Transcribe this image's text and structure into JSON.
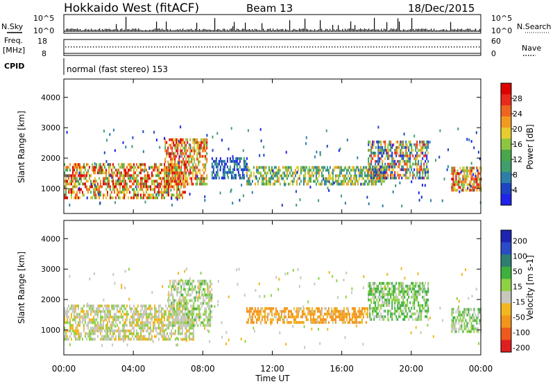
{
  "header": {
    "station": "Hokkaido West (fitACF)",
    "beam": "Beam 13",
    "date": "18/Dec/2015"
  },
  "strips": {
    "nsky_label": "N.Sky",
    "nsky_ticks": [
      "10^5",
      "10^0"
    ],
    "nsearch_label": "N.Search",
    "nsearch_ticks": [
      "10^5",
      "10^0"
    ],
    "freq_label_line1": "Freq.",
    "freq_label_line2": "[MHz]",
    "freq_ticks": [
      "18",
      "8"
    ],
    "nave_label": "Nave",
    "nave_ticks": [
      "60",
      "0"
    ],
    "cpid_label": "CPID",
    "cpid_text": "normal (fast stereo) 153"
  },
  "colors": {
    "power_scale": [
      "#1f24e8",
      "#1e44c0",
      "#2d7fa8",
      "#3f9f6a",
      "#4aa64b",
      "#8ec540",
      "#e6cc2e",
      "#f19a22",
      "#ee6420",
      "#e8291c",
      "#dc0000"
    ],
    "velocity_scale": [
      "#e01e1e",
      "#ee5a1c",
      "#f3941c",
      "#f2b71f",
      "#c7c7bf",
      "#8fd145",
      "#3eb03e",
      "#2e7f72",
      "#2a4cc7",
      "#1c24b0"
    ]
  },
  "chart_data": [
    {
      "type": "heatmap",
      "name": "power",
      "title": "",
      "xlabel": "",
      "ylabel": "Slant Range [km]",
      "xlim": [
        "00:00",
        "00:00"
      ],
      "x_ticks": [
        "00:00",
        "04:00",
        "08:00",
        "12:00",
        "16:00",
        "20:00",
        "00:00"
      ],
      "ylim": [
        180,
        4600
      ],
      "y_ticks": [
        1000,
        2000,
        3000,
        4000
      ],
      "colorbar_label": "Power [dB]",
      "colorbar_ticks": [
        4,
        8,
        12,
        16,
        20,
        24,
        28
      ],
      "colorbar_range": [
        0,
        32
      ],
      "bands": [
        {
          "start_hour": 0.0,
          "end_hour": 7.0,
          "min_km": 650,
          "max_km": 1750,
          "level": "high"
        },
        {
          "start_hour": 5.8,
          "end_hour": 8.2,
          "min_km": 1100,
          "max_km": 2600,
          "level": "high"
        },
        {
          "start_hour": 8.5,
          "end_hour": 10.5,
          "min_km": 1300,
          "max_km": 2000,
          "level": "low"
        },
        {
          "start_hour": 10.5,
          "end_hour": 18.5,
          "min_km": 1100,
          "max_km": 1700,
          "level": "medium"
        },
        {
          "start_hour": 17.5,
          "end_hour": 21.0,
          "min_km": 1300,
          "max_km": 2500,
          "level": "mixed"
        },
        {
          "start_hour": 22.3,
          "end_hour": 24.0,
          "min_km": 900,
          "max_km": 1700,
          "level": "high"
        }
      ]
    },
    {
      "type": "heatmap",
      "name": "velocity",
      "title": "",
      "xlabel": "Time UT",
      "ylabel": "Slant Range [km]",
      "xlim": [
        "00:00",
        "00:00"
      ],
      "x_ticks": [
        "00:00",
        "04:00",
        "08:00",
        "12:00",
        "16:00",
        "20:00",
        "00:00"
      ],
      "ylim": [
        180,
        4600
      ],
      "y_ticks": [
        1000,
        2000,
        3000,
        4000
      ],
      "colorbar_label": "Velocity [m s-1]",
      "colorbar_ticks": [
        "200",
        "100",
        "50",
        "15",
        "-15",
        "-50",
        "-100",
        "-200"
      ],
      "colorbar_range": [
        -250,
        250
      ],
      "bands": [
        {
          "start_hour": 0.0,
          "end_hour": 7.5,
          "min_km": 650,
          "max_km": 1750,
          "velocity": 0
        },
        {
          "start_hour": 6.0,
          "end_hour": 8.5,
          "min_km": 1100,
          "max_km": 2600,
          "velocity": 10
        },
        {
          "start_hour": 10.5,
          "end_hour": 17.5,
          "min_km": 1200,
          "max_km": 1700,
          "velocity": -40
        },
        {
          "start_hour": 17.5,
          "end_hour": 21.0,
          "min_km": 1300,
          "max_km": 2500,
          "velocity": 30
        },
        {
          "start_hour": 22.3,
          "end_hour": 24.0,
          "min_km": 900,
          "max_km": 1700,
          "velocity": 20
        }
      ]
    }
  ]
}
